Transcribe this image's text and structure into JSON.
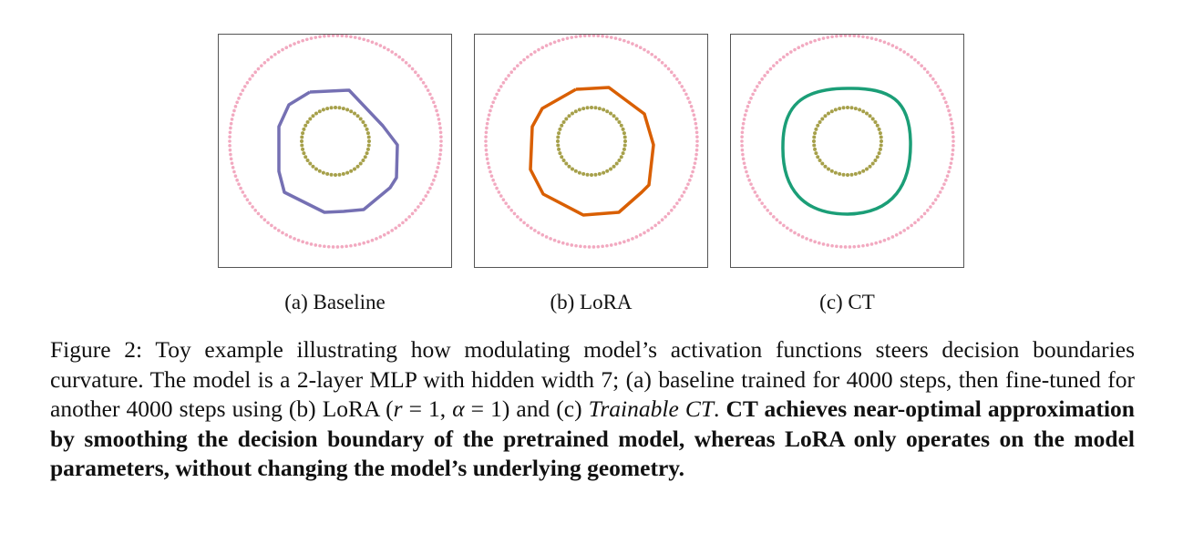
{
  "panels": [
    {
      "id": "baseline",
      "label": "(a) Baseline",
      "boundary_color": "#7570b3",
      "boundary": "baseline"
    },
    {
      "id": "lora",
      "label": "(b) LoRA",
      "boundary_color": "#d95f02",
      "boundary": "lora"
    },
    {
      "id": "ct",
      "label": "(c) CT",
      "boundary_color": "#1b9e77",
      "boundary": "ct"
    }
  ],
  "colors": {
    "outer_points": "#f2a9c0",
    "inner_points": "#a6a04a"
  },
  "caption": {
    "lead": "Figure 2: Toy example illustrating how modulating model’s activation functions steers decision boundaries curvature. The model is a 2-layer MLP with hidden width 7; (a) baseline trained for 4000 steps, then fine-tuned for another 4000 steps using (b) LoRA (",
    "math1": "r",
    "eq1": " = 1, ",
    "math2": "α",
    "eq2": " = 1) and (c) ",
    "trainable": "Trainable CT",
    "period": ".",
    "bold": " CT achieves near-optimal approximation by smoothing the decision boundary of the pretrained model, whereas LoRA only operates on the model parameters, without changing the model’s underlying geometry."
  }
}
